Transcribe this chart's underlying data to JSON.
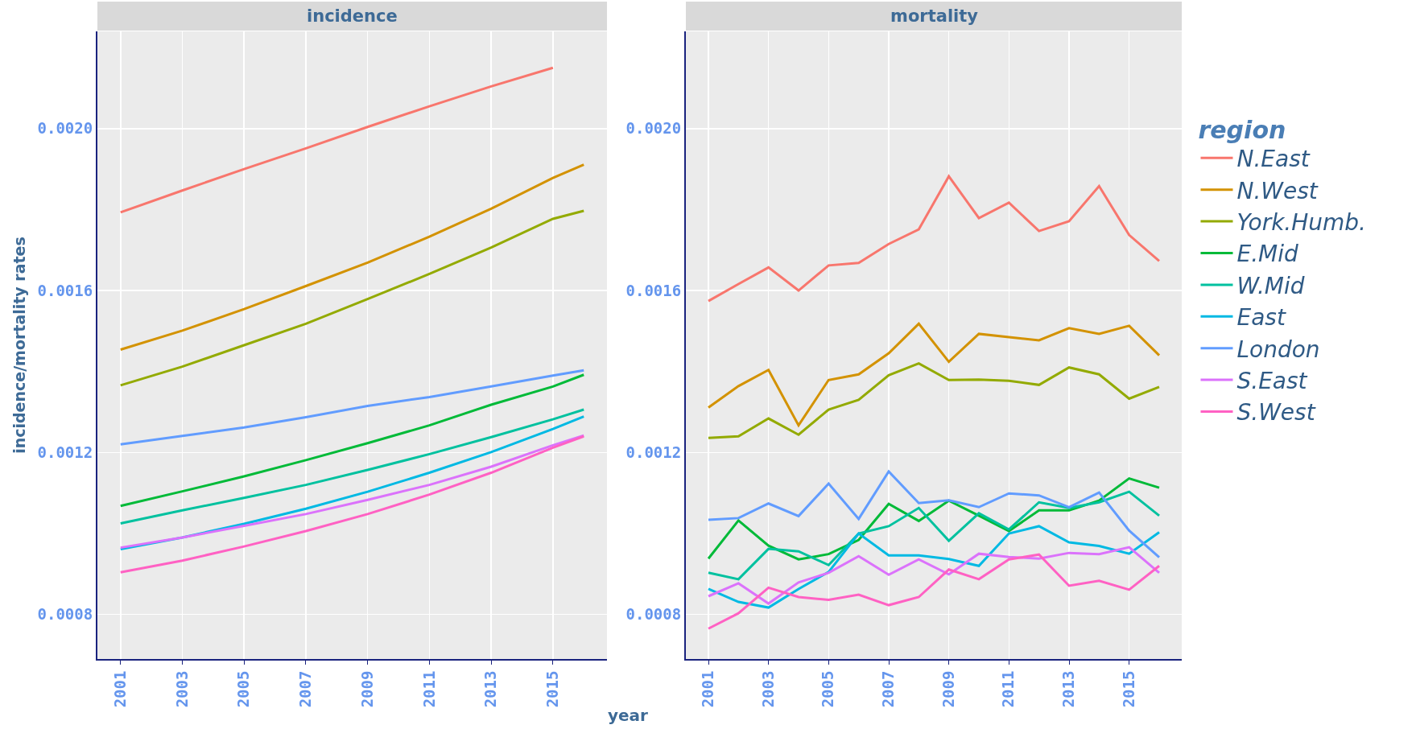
{
  "chart_data": [
    {
      "type": "line",
      "title": "incidence",
      "xlabel": "year",
      "ylabel": "incidence/mortality rates",
      "x": [
        2001,
        2003,
        2005,
        2007,
        2009,
        2011,
        2013,
        2015,
        2016
      ],
      "xlim": [
        2000.25,
        2016.75
      ],
      "ylim": [
        0.00069,
        0.00224
      ],
      "xticks": [
        2001,
        2003,
        2005,
        2007,
        2009,
        2011,
        2013,
        2015
      ],
      "yticks": [
        0.0008,
        0.0012,
        0.0016,
        {
          "value": 0.002,
          "label": "0.0020"
        }
      ],
      "grid": true,
      "legend": false,
      "series": [
        {
          "color": "#f8766d",
          "values": [
            0.001793,
            0.001847,
            0.0019,
            0.001951,
            0.002004,
            0.002055,
            0.002104,
            0.00215,
            null
          ]
        },
        {
          "color": "#d39200",
          "values": [
            0.001454,
            0.001501,
            0.001554,
            0.001611,
            0.001669,
            0.001733,
            0.001802,
            0.001878,
            0.001911
          ]
        },
        {
          "color": "#93aa00",
          "values": [
            0.001366,
            0.001412,
            0.001465,
            0.001518,
            0.001579,
            0.001641,
            0.001706,
            0.001777,
            0.001797
          ]
        },
        {
          "color": "#00ba38",
          "values": [
            0.001068,
            0.001104,
            0.001141,
            0.001181,
            0.001223,
            0.001267,
            0.001318,
            0.001363,
            0.001392
          ]
        },
        {
          "color": "#00c19f",
          "values": [
            0.001025,
            0.001057,
            0.001088,
            0.00112,
            0.001157,
            0.001196,
            0.001238,
            0.001282,
            0.001306
          ]
        },
        {
          "color": "#00b9e3",
          "values": [
            0.000961,
            0.00099,
            0.001024,
            0.001061,
            0.001103,
            0.00115,
            0.001201,
            0.001258,
            0.001289
          ]
        },
        {
          "color": "#619cff",
          "values": [
            0.00122,
            0.001241,
            0.001262,
            0.001287,
            0.001315,
            0.001337,
            0.001363,
            0.00139,
            0.001403
          ]
        },
        {
          "color": "#db72fb",
          "values": [
            0.000965,
            0.00099,
            0.001019,
            0.001048,
            0.001083,
            0.00112,
            0.001165,
            0.001218,
            0.001242
          ]
        },
        {
          "color": "#ff61c3",
          "values": [
            0.000904,
            0.000933,
            0.000968,
            0.001006,
            0.001048,
            0.001096,
            0.00115,
            0.001212,
            0.00124
          ]
        }
      ]
    },
    {
      "type": "line",
      "title": "mortality",
      "legend_title": "region",
      "x": [
        2001,
        2002,
        2003,
        2004,
        2005,
        2006,
        2007,
        2008,
        2009,
        2010,
        2011,
        2012,
        2013,
        2014,
        2015,
        2016
      ],
      "xlim": [
        2000.25,
        2016.75
      ],
      "ylim": [
        0.00069,
        0.00224
      ],
      "xticks": [
        2001,
        2003,
        2005,
        2007,
        2009,
        2011,
        2013,
        2015
      ],
      "yticks": [
        0.0008,
        0.0012,
        0.0016,
        {
          "value": 0.002,
          "label": "0.0020"
        }
      ],
      "grid": true,
      "legend": "right",
      "series": [
        {
          "name": "N.East",
          "color": "#f8766d",
          "values": [
            0.001574,
            0.001616,
            0.001657,
            0.0016,
            0.001662,
            0.001668,
            0.001715,
            0.001751,
            0.001882,
            0.001779,
            0.001817,
            0.001747,
            0.001771,
            0.001858,
            0.001737,
            0.001673
          ]
        },
        {
          "name": "N.West",
          "color": "#d39200",
          "values": [
            0.001311,
            0.001364,
            0.001404,
            0.001267,
            0.001379,
            0.001393,
            0.001445,
            0.001518,
            0.001424,
            0.001493,
            0.001485,
            0.001477,
            0.001507,
            0.001493,
            0.001513,
            0.00144
          ]
        },
        {
          "name": "York.Humb.",
          "color": "#93aa00",
          "values": [
            0.001236,
            0.00124,
            0.001284,
            0.001244,
            0.001306,
            0.00133,
            0.001391,
            0.00142,
            0.001379,
            0.00138,
            0.001377,
            0.001367,
            0.00141,
            0.001393,
            0.001333,
            0.001362
          ]
        },
        {
          "name": "E.Mid",
          "color": "#00ba38",
          "values": [
            0.000938,
            0.001032,
            0.00097,
            0.000936,
            0.000949,
            0.000984,
            0.001073,
            0.001031,
            0.001081,
            0.001044,
            0.001006,
            0.001057,
            0.001057,
            0.001081,
            0.001136,
            0.001113
          ]
        },
        {
          "name": "W.Mid",
          "color": "#00c19f",
          "values": [
            0.000903,
            0.000887,
            0.000962,
            0.000956,
            0.000922,
            0.001,
            0.001018,
            0.001063,
            0.000982,
            0.00105,
            0.00101,
            0.001077,
            0.001063,
            0.001077,
            0.001103,
            0.001044
          ]
        },
        {
          "name": "East",
          "color": "#00b9e3",
          "values": [
            0.000863,
            0.000831,
            0.000817,
            0.000863,
            0.000905,
            0.001,
            0.000946,
            0.000946,
            0.000937,
            0.00092,
            0.001,
            0.001018,
            0.000978,
            0.000969,
            0.00095,
            0.001003
          ]
        },
        {
          "name": "London",
          "color": "#619cff",
          "values": [
            0.001034,
            0.001038,
            0.001074,
            0.001043,
            0.001123,
            0.001036,
            0.001153,
            0.001075,
            0.001082,
            0.001065,
            0.001099,
            0.001094,
            0.001065,
            0.001101,
            0.001007,
            0.000941
          ]
        },
        {
          "name": "S.East",
          "color": "#db72fb",
          "values": [
            0.000845,
            0.000877,
            0.000827,
            0.000879,
            0.000903,
            0.000944,
            0.000898,
            0.000936,
            0.000899,
            0.00095,
            0.000942,
            0.000938,
            0.000952,
            0.000949,
            0.000966,
            0.000903
          ]
        },
        {
          "name": "S.West",
          "color": "#ff61c3",
          "values": [
            0.000765,
            0.000803,
            0.000866,
            0.000843,
            0.000836,
            0.000849,
            0.000823,
            0.000843,
            0.000911,
            0.000887,
            0.000936,
            0.000948,
            0.000871,
            0.000883,
            0.000861,
            0.00092
          ]
        }
      ]
    }
  ]
}
